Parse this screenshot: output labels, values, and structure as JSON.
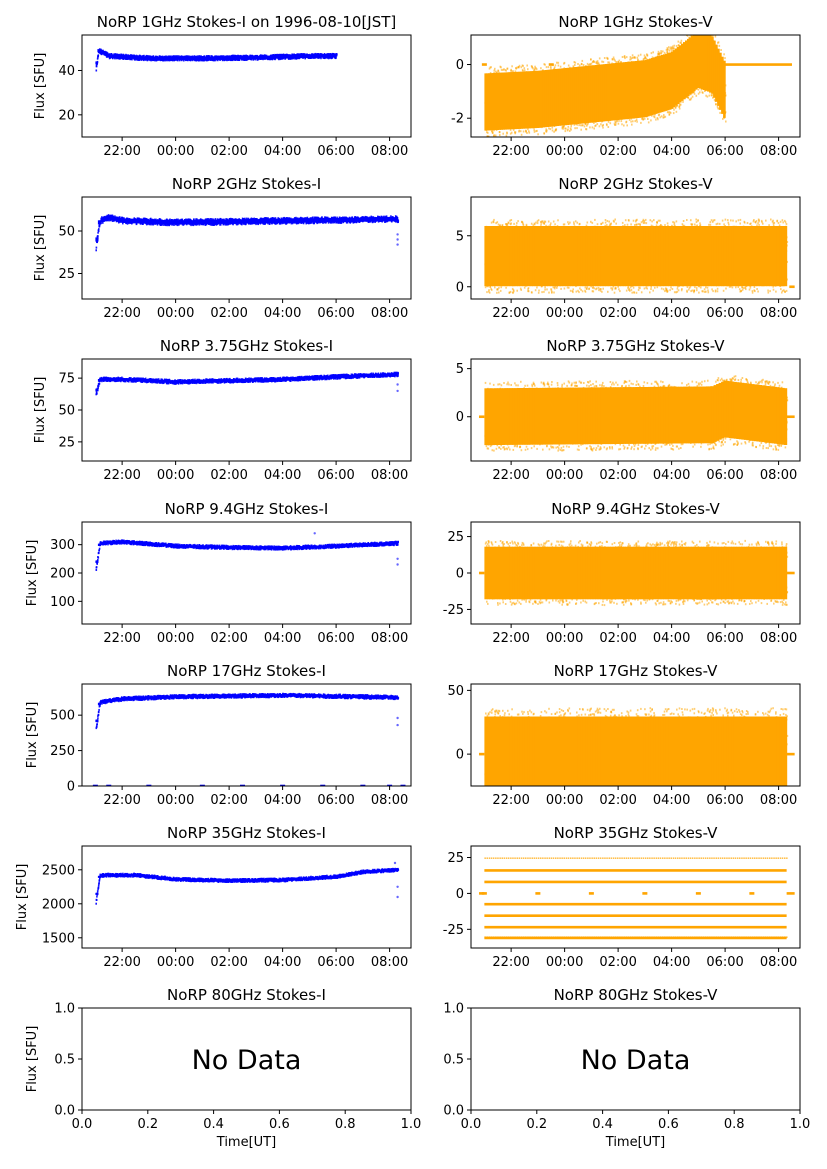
{
  "figure": {
    "x_axis_label": "Time[UT]",
    "no_data_text": "No Data",
    "colors": {
      "stokes_i": "#0000ff",
      "stokes_v": "#ffa500",
      "axes": "#000000"
    }
  },
  "chart_data": [
    {
      "type": "scatter",
      "title": "NoRP 1GHz Stokes-I on 1996-08-10[JST]",
      "ylabel": "Flux [SFU]",
      "xlabel": "",
      "x_ticks": [
        "22:00",
        "00:00",
        "02:00",
        "04:00",
        "06:00",
        "08:00"
      ],
      "x_range_hours": [
        -3.5,
        8.8
      ],
      "ylim": [
        10,
        56
      ],
      "y_ticks": [
        20,
        40
      ],
      "color": "#0000ff",
      "data_span_hours": [
        -3.0,
        6.0
      ],
      "trend": [
        [
          -3.0,
          40
        ],
        [
          -2.9,
          49
        ],
        [
          -2.5,
          46.5
        ],
        [
          -1,
          45.5
        ],
        [
          1,
          45.5
        ],
        [
          3,
          45.8
        ],
        [
          5,
          46.5
        ],
        [
          6,
          46.5
        ]
      ],
      "spread": 2,
      "outliers": []
    },
    {
      "type": "scatter",
      "title": "NoRP 1GHz Stokes-V",
      "ylabel": "",
      "xlabel": "",
      "x_ticks": [
        "22:00",
        "00:00",
        "02:00",
        "04:00",
        "06:00",
        "08:00"
      ],
      "x_range_hours": [
        -3.5,
        8.8
      ],
      "ylim": [
        -2.7,
        1.1
      ],
      "y_ticks": [
        -2,
        0
      ],
      "color": "#ffa500",
      "data_span_hours": [
        -3.0,
        6.0
      ],
      "trend": [
        [
          -3.0,
          -1.4
        ],
        [
          -1,
          -1.3
        ],
        [
          1,
          -1.1
        ],
        [
          3,
          -0.9
        ],
        [
          4,
          -0.6
        ],
        [
          5,
          0.2
        ],
        [
          5.5,
          0
        ],
        [
          6,
          -1.0
        ]
      ],
      "spread": 1.3,
      "outliers": [],
      "flat_segments": [
        {
          "x": [
            6.0,
            8.5
          ],
          "y": 0
        }
      ],
      "zero_marks": [
        -3.0,
        -0.5,
        2.5
      ]
    },
    {
      "type": "scatter",
      "title": "NoRP 2GHz Stokes-I",
      "ylabel": "Flux [SFU]",
      "xlabel": "",
      "x_ticks": [
        "22:00",
        "00:00",
        "02:00",
        "04:00",
        "06:00",
        "08:00"
      ],
      "x_range_hours": [
        -3.5,
        8.8
      ],
      "ylim": [
        10,
        70
      ],
      "y_ticks": [
        25,
        50
      ],
      "color": "#0000ff",
      "data_span_hours": [
        -3.0,
        8.3
      ],
      "trend": [
        [
          -3.0,
          40
        ],
        [
          -2.85,
          56
        ],
        [
          -2.5,
          58
        ],
        [
          -2,
          56
        ],
        [
          0,
          55
        ],
        [
          4,
          56
        ],
        [
          8.3,
          57
        ]
      ],
      "spread": 3.5,
      "outliers": [
        [
          8.3,
          42
        ],
        [
          8.3,
          45
        ],
        [
          8.3,
          48
        ]
      ]
    },
    {
      "type": "scatter",
      "title": "NoRP 2GHz Stokes-V",
      "ylabel": "",
      "xlabel": "",
      "x_ticks": [
        "22:00",
        "00:00",
        "02:00",
        "04:00",
        "06:00",
        "08:00"
      ],
      "x_range_hours": [
        -3.5,
        8.8
      ],
      "ylim": [
        -1.2,
        8.8
      ],
      "y_ticks": [
        0,
        5
      ],
      "color": "#ffa500",
      "data_span_hours": [
        -3.0,
        8.3
      ],
      "trend": [
        [
          -3.0,
          3
        ],
        [
          8.3,
          3
        ]
      ],
      "spread": 3.6,
      "outliers": [],
      "flat_segments": [
        {
          "x": [
            8.4,
            8.6
          ],
          "y": 0
        }
      ],
      "zero_marks": []
    },
    {
      "type": "scatter",
      "title": "NoRP 3.75GHz Stokes-I",
      "ylabel": "Flux [SFU]",
      "xlabel": "",
      "x_ticks": [
        "22:00",
        "00:00",
        "02:00",
        "04:00",
        "06:00",
        "08:00"
      ],
      "x_range_hours": [
        -3.5,
        8.8
      ],
      "ylim": [
        10,
        90
      ],
      "y_ticks": [
        25,
        50,
        75
      ],
      "color": "#0000ff",
      "data_span_hours": [
        -3.0,
        8.3
      ],
      "trend": [
        [
          -3.0,
          62
        ],
        [
          -2.85,
          74
        ],
        [
          -2,
          74
        ],
        [
          0,
          72
        ],
        [
          2,
          73
        ],
        [
          4,
          74
        ],
        [
          6,
          76
        ],
        [
          8.3,
          78
        ]
      ],
      "spread": 3,
      "outliers": [
        [
          8.3,
          65
        ],
        [
          8.3,
          70
        ]
      ]
    },
    {
      "type": "scatter",
      "title": "NoRP 3.75GHz Stokes-V",
      "ylabel": "",
      "xlabel": "",
      "x_ticks": [
        "22:00",
        "00:00",
        "02:00",
        "04:00",
        "06:00",
        "08:00"
      ],
      "x_range_hours": [
        -3.5,
        8.8
      ],
      "ylim": [
        -4.6,
        6.0
      ],
      "y_ticks": [
        0,
        5
      ],
      "color": "#ffa500",
      "data_span_hours": [
        -3.0,
        8.3
      ],
      "trend": [
        [
          -3.0,
          0
        ],
        [
          5.5,
          0.2
        ],
        [
          6,
          0.8
        ],
        [
          8.3,
          0
        ]
      ],
      "spread": 3.6,
      "outliers": [],
      "flat_segments": [
        {
          "x": [
            -3.2,
            -3.0
          ],
          "y": 0
        },
        {
          "x": [
            8.3,
            8.6
          ],
          "y": 0
        }
      ],
      "zero_marks": []
    },
    {
      "type": "scatter",
      "title": "NoRP 9.4GHz Stokes-I",
      "ylabel": "Flux [SFU]",
      "xlabel": "",
      "x_ticks": [
        "22:00",
        "00:00",
        "02:00",
        "04:00",
        "06:00",
        "08:00"
      ],
      "x_range_hours": [
        -3.5,
        8.8
      ],
      "ylim": [
        20,
        380
      ],
      "y_ticks": [
        100,
        200,
        300
      ],
      "color": "#0000ff",
      "data_span_hours": [
        -3.0,
        8.3
      ],
      "trend": [
        [
          -3.0,
          210
        ],
        [
          -2.85,
          305
        ],
        [
          -2,
          310
        ],
        [
          0,
          295
        ],
        [
          2,
          290
        ],
        [
          4,
          288
        ],
        [
          6,
          295
        ],
        [
          8.3,
          305
        ]
      ],
      "spread": 12,
      "outliers": [
        [
          8.3,
          230
        ],
        [
          8.3,
          250
        ],
        [
          5.2,
          340
        ]
      ]
    },
    {
      "type": "scatter",
      "title": "NoRP 9.4GHz Stokes-V",
      "ylabel": "",
      "xlabel": "",
      "x_ticks": [
        "22:00",
        "00:00",
        "02:00",
        "04:00",
        "06:00",
        "08:00"
      ],
      "x_range_hours": [
        -3.5,
        8.8
      ],
      "ylim": [
        -35,
        35
      ],
      "y_ticks": [
        -25,
        0,
        25
      ],
      "color": "#ffa500",
      "data_span_hours": [
        -3.0,
        8.3
      ],
      "trend": [
        [
          -3.0,
          0
        ],
        [
          8.3,
          0
        ]
      ],
      "spread": 22,
      "outliers": [],
      "flat_segments": [
        {
          "x": [
            -3.2,
            -3.0
          ],
          "y": 0
        },
        {
          "x": [
            8.3,
            8.6
          ],
          "y": 0
        }
      ],
      "zero_marks": []
    },
    {
      "type": "scatter",
      "title": "NoRP 17GHz Stokes-I",
      "ylabel": "Flux [SFU]",
      "xlabel": "",
      "x_ticks": [
        "22:00",
        "00:00",
        "02:00",
        "04:00",
        "06:00",
        "08:00"
      ],
      "x_range_hours": [
        -3.5,
        8.8
      ],
      "ylim": [
        0,
        720
      ],
      "y_ticks": [
        0,
        250,
        500
      ],
      "color": "#0000ff",
      "data_span_hours": [
        -3.0,
        8.3
      ],
      "trend": [
        [
          -3.0,
          400
        ],
        [
          -2.85,
          590
        ],
        [
          -2,
          615
        ],
        [
          0,
          630
        ],
        [
          4,
          640
        ],
        [
          8.3,
          625
        ]
      ],
      "spread": 25,
      "outliers": [
        [
          8.3,
          430
        ],
        [
          8.3,
          480
        ]
      ],
      "zero_marks": [
        -3.0,
        -2.5,
        -1.0,
        1.0,
        2.5,
        4.0,
        5.5,
        7.0,
        8.0,
        8.5
      ]
    },
    {
      "type": "scatter",
      "title": "NoRP 17GHz Stokes-V",
      "ylabel": "",
      "xlabel": "",
      "x_ticks": [
        "22:00",
        "00:00",
        "02:00",
        "04:00",
        "06:00",
        "08:00"
      ],
      "x_range_hours": [
        -3.5,
        8.8
      ],
      "ylim": [
        -25,
        55
      ],
      "y_ticks": [
        0,
        50
      ],
      "color": "#ffa500",
      "data_span_hours": [
        -3.0,
        8.3
      ],
      "trend": [
        [
          -3.0,
          0
        ],
        [
          8.3,
          0
        ]
      ],
      "spread": 36,
      "outliers": [],
      "flat_segments": [
        {
          "x": [
            -3.2,
            -3.0
          ],
          "y": 0
        },
        {
          "x": [
            8.3,
            8.6
          ],
          "y": 0
        }
      ],
      "zero_marks": []
    },
    {
      "type": "scatter",
      "title": "NoRP 35GHz Stokes-I",
      "ylabel": "Flux [SFU]",
      "xlabel": "",
      "x_ticks": [
        "22:00",
        "00:00",
        "02:00",
        "04:00",
        "06:00",
        "08:00"
      ],
      "x_range_hours": [
        -3.5,
        8.8
      ],
      "ylim": [
        1350,
        2850
      ],
      "y_ticks": [
        1500,
        2000,
        2500
      ],
      "color": "#0000ff",
      "data_span_hours": [
        -3.0,
        8.3
      ],
      "trend": [
        [
          -3.0,
          2020
        ],
        [
          -2.85,
          2420
        ],
        [
          -1.5,
          2420
        ],
        [
          0,
          2360
        ],
        [
          2,
          2340
        ],
        [
          4,
          2350
        ],
        [
          6,
          2400
        ],
        [
          7,
          2470
        ],
        [
          8.3,
          2500
        ]
      ],
      "spread": 45,
      "outliers": [
        [
          8.3,
          2100
        ],
        [
          8.3,
          2250
        ],
        [
          8.2,
          2600
        ]
      ]
    },
    {
      "type": "discrete",
      "title": "NoRP 35GHz Stokes-V",
      "ylabel": "",
      "xlabel": "",
      "x_ticks": [
        "22:00",
        "00:00",
        "02:00",
        "04:00",
        "06:00",
        "08:00"
      ],
      "x_range_hours": [
        -3.5,
        8.8
      ],
      "ylim": [
        -38,
        33
      ],
      "y_ticks": [
        -25,
        0,
        25
      ],
      "color": "#ffa500",
      "data_span_hours": [
        -3.0,
        8.3
      ],
      "levels": [
        -31,
        -23.5,
        -15.5,
        -7.5,
        8,
        16
      ],
      "sparse_levels": [
        24.5,
        -30.5
      ],
      "zero_marks": [
        -3.0,
        -1.0,
        1.0,
        3.0,
        5.0,
        7.0
      ],
      "flat_segments": [
        {
          "x": [
            -3.2,
            -3.0
          ],
          "y": 0
        },
        {
          "x": [
            8.3,
            8.6
          ],
          "y": 0
        }
      ]
    },
    {
      "type": "empty",
      "title": "NoRP 80GHz Stokes-I",
      "ylabel": "Flux [SFU]",
      "xlabel": "Time[UT]",
      "x_ticks": [
        "0.0",
        "0.2",
        "0.4",
        "0.6",
        "0.8",
        "1.0"
      ],
      "y_ticks": [
        "0.0",
        "0.5",
        "1.0"
      ],
      "xlim": [
        0,
        1
      ],
      "ylim": [
        0,
        1
      ],
      "message": "No Data"
    },
    {
      "type": "empty",
      "title": "NoRP 80GHz Stokes-V",
      "ylabel": "",
      "xlabel": "Time[UT]",
      "x_ticks": [
        "0.0",
        "0.2",
        "0.4",
        "0.6",
        "0.8",
        "1.0"
      ],
      "y_ticks": [
        "0.0",
        "0.5",
        "1.0"
      ],
      "xlim": [
        0,
        1
      ],
      "ylim": [
        0,
        1
      ],
      "message": "No Data"
    }
  ]
}
